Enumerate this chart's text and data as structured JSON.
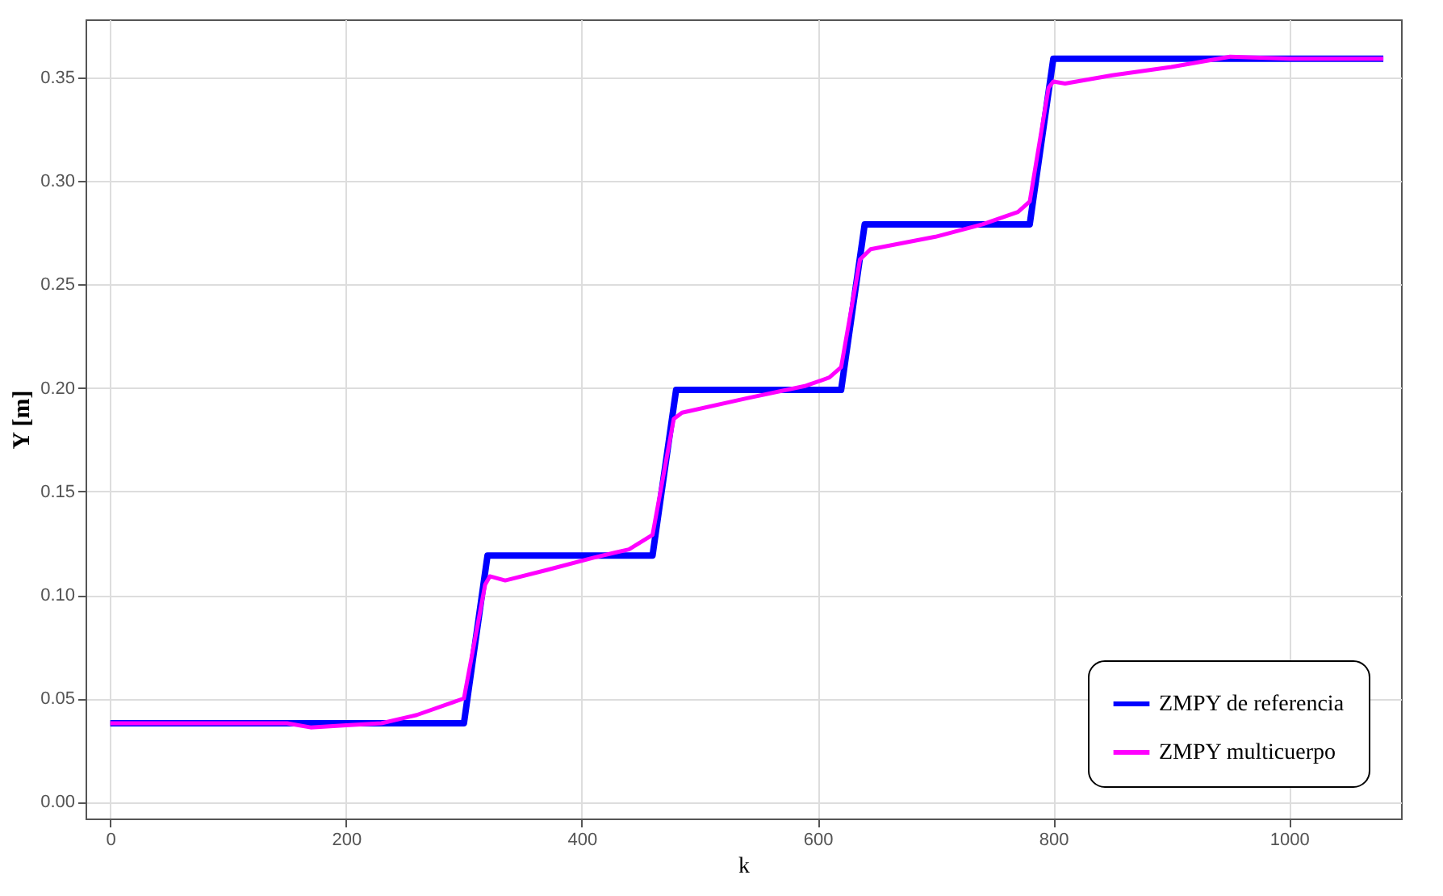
{
  "chart_data": {
    "type": "line",
    "xlabel": "k",
    "ylabel": "Y [m]",
    "xlim": [
      -21,
      1095
    ],
    "ylim": [
      -0.008,
      0.378
    ],
    "xticks": [
      0,
      200,
      400,
      600,
      800,
      1000
    ],
    "yticks": [
      {
        "value": 0,
        "label": "0.00"
      },
      0.05,
      {
        "value": 0.1,
        "label": "0.10"
      },
      0.15,
      {
        "value": 0.2,
        "label": "0.20"
      },
      0.25,
      {
        "value": 0.3,
        "label": "0.30"
      },
      0.35
    ],
    "grid": true,
    "legend": "bottom right",
    "line_style": "solid",
    "marker": "none",
    "series": [
      {
        "name": "ZMPY de referencia",
        "color": "#0000ff",
        "x": [
          0,
          300,
          320,
          460,
          480,
          620,
          640,
          780,
          800,
          1080
        ],
        "values": [
          0.038,
          0.038,
          0.119,
          0.119,
          0.199,
          0.199,
          0.279,
          0.279,
          0.359,
          0.359
        ]
      },
      {
        "name": "ZMPY multicuerpo",
        "color": "#ff00ff",
        "x": [
          0,
          150,
          170,
          200,
          230,
          260,
          290,
          300,
          318,
          322,
          335,
          370,
          410,
          440,
          460,
          478,
          485,
          540,
          590,
          610,
          620,
          636,
          645,
          700,
          740,
          770,
          780,
          796,
          800,
          810,
          850,
          900,
          950,
          1000,
          1080
        ],
        "values": [
          0.038,
          0.038,
          0.036,
          0.037,
          0.038,
          0.042,
          0.048,
          0.05,
          0.105,
          0.109,
          0.107,
          0.112,
          0.118,
          0.122,
          0.129,
          0.185,
          0.188,
          0.195,
          0.201,
          0.205,
          0.21,
          0.262,
          0.267,
          0.273,
          0.279,
          0.285,
          0.29,
          0.345,
          0.348,
          0.347,
          0.351,
          0.355,
          0.36,
          0.359,
          0.359
        ]
      }
    ]
  }
}
